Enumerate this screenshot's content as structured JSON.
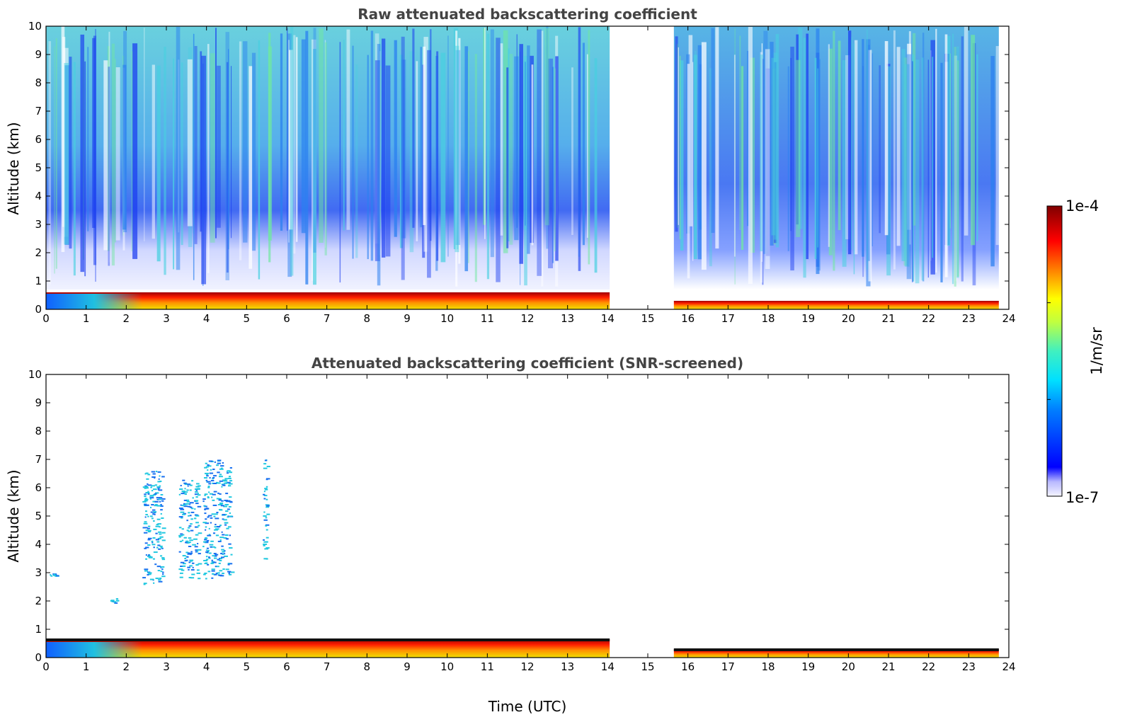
{
  "chart_data": [
    {
      "type": "heatmap",
      "title": "Raw attenuated backscattering coefficient",
      "xlabel": "",
      "ylabel": "Altitude (km)",
      "xlim": [
        0,
        24
      ],
      "ylim": [
        0,
        10
      ],
      "xticks": [
        "0",
        "1",
        "2",
        "3",
        "4",
        "5",
        "6",
        "7",
        "8",
        "9",
        "10",
        "11",
        "12",
        "13",
        "14",
        "15",
        "16",
        "17",
        "18",
        "19",
        "20",
        "21",
        "22",
        "23",
        "24"
      ],
      "yticks": [
        "0",
        "1",
        "2",
        "3",
        "4",
        "5",
        "6",
        "7",
        "8",
        "9",
        "10"
      ],
      "data_gaps": [
        [
          14.05,
          15.65
        ],
        [
          23.75,
          24
        ]
      ],
      "regions": [
        {
          "x": [
            0,
            14.05
          ],
          "y": [
            0,
            0.7
          ],
          "level": "high"
        },
        {
          "x": [
            15.65,
            23.75
          ],
          "y": [
            0,
            0.4
          ],
          "level": "high"
        },
        {
          "x": [
            0,
            14.05
          ],
          "y": [
            0.7,
            10
          ],
          "level": "low-medium"
        },
        {
          "x": [
            15.65,
            23.75
          ],
          "y": [
            0.6,
            10
          ],
          "level": "low-medium"
        }
      ]
    },
    {
      "type": "heatmap",
      "title": "Attenuated backscattering coefficient (SNR-screened)",
      "xlabel": "Time (UTC)",
      "ylabel": "Altitude (km)",
      "xlim": [
        0,
        24
      ],
      "ylim": [
        0,
        10
      ],
      "xticks": [
        "0",
        "1",
        "2",
        "3",
        "4",
        "5",
        "6",
        "7",
        "8",
        "9",
        "10",
        "11",
        "12",
        "13",
        "14",
        "15",
        "16",
        "17",
        "18",
        "19",
        "20",
        "21",
        "22",
        "23",
        "24"
      ],
      "yticks": [
        "0",
        "1",
        "2",
        "3",
        "4",
        "5",
        "6",
        "7",
        "8",
        "9",
        "10"
      ],
      "data_gaps": [
        [
          14.05,
          15.65
        ],
        [
          23.75,
          24
        ]
      ],
      "features": [
        {
          "x": [
            2.4,
            2.9
          ],
          "y": [
            2.6,
            6.6
          ],
          "level": "medium"
        },
        {
          "x": [
            3.3,
            3.8
          ],
          "y": [
            2.8,
            6.3
          ],
          "level": "medium"
        },
        {
          "x": [
            3.9,
            4.6
          ],
          "y": [
            2.8,
            7.0
          ],
          "level": "medium"
        },
        {
          "x": [
            5.4,
            5.5
          ],
          "y": [
            3.4,
            7.0
          ],
          "level": "medium"
        },
        {
          "x": [
            0,
            0.25
          ],
          "y": [
            2.9,
            3.0
          ],
          "level": "low"
        },
        {
          "x": [
            1.6,
            1.75
          ],
          "y": [
            1.95,
            2.1
          ],
          "level": "low"
        }
      ]
    }
  ],
  "colorbar": {
    "top_label": "1e-4",
    "bottom_label": "1e-7",
    "unit_label": "1/m/sr",
    "colormap": "jet",
    "colors": [
      "#e8e8f8",
      "#0000ff",
      "#00c8ff",
      "#60f0a0",
      "#f0f000",
      "#ff8000",
      "#ff0000",
      "#800000"
    ]
  }
}
